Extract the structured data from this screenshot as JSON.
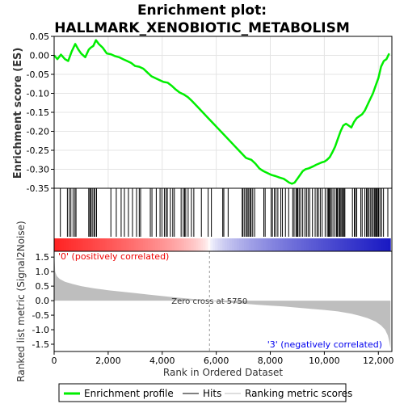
{
  "chart_data": {
    "type": "line",
    "title": "Enrichment plot:",
    "subtitle": "HALLMARK_XENOBIOTIC_METABOLISM",
    "es_panel": {
      "ylabel": "Enrichment score (ES)",
      "ylim": [
        -0.35,
        0.05
      ],
      "yticks": [
        0.05,
        0.0,
        -0.05,
        -0.1,
        -0.15,
        -0.2,
        -0.25,
        -0.3,
        -0.35
      ],
      "ytick_labels": [
        "0.05",
        "0.00",
        "-0.05",
        "-0.10",
        "-0.15",
        "-0.20",
        "-0.25",
        "-0.30",
        "-0.35"
      ],
      "color": "#00ee00",
      "series": {
        "x": [
          0,
          120,
          250,
          400,
          520,
          650,
          780,
          900,
          1000,
          1150,
          1280,
          1350,
          1450,
          1550,
          1650,
          1800,
          1950,
          2100,
          2250,
          2400,
          2550,
          2700,
          2850,
          3000,
          3150,
          3300,
          3450,
          3600,
          3750,
          3900,
          4050,
          4200,
          4350,
          4500,
          4650,
          4800,
          4950,
          5100,
          5300,
          5500,
          5700,
          5900,
          6100,
          6300,
          6500,
          6700,
          6900,
          7100,
          7300,
          7450,
          7600,
          7750,
          7900,
          8050,
          8200,
          8350,
          8500,
          8600,
          8700,
          8800,
          8900,
          9000,
          9100,
          9200,
          9300,
          9400,
          9500,
          9600,
          9700,
          9800,
          9900,
          10000,
          10100,
          10200,
          10300,
          10400,
          10500,
          10600,
          10700,
          10800,
          10900,
          11000,
          11100,
          11200,
          11300,
          11400,
          11500,
          11600,
          11700,
          11800,
          11900,
          12000,
          12100,
          12200,
          12300,
          12400
        ],
        "y": [
          0.0,
          -0.01,
          0.002,
          -0.01,
          -0.015,
          0.01,
          0.03,
          0.015,
          0.005,
          -0.005,
          0.015,
          0.02,
          0.025,
          0.04,
          0.03,
          0.02,
          0.005,
          0.003,
          -0.002,
          -0.005,
          -0.01,
          -0.015,
          -0.02,
          -0.028,
          -0.03,
          -0.035,
          -0.045,
          -0.055,
          -0.06,
          -0.065,
          -0.07,
          -0.072,
          -0.08,
          -0.09,
          -0.098,
          -0.103,
          -0.11,
          -0.12,
          -0.135,
          -0.15,
          -0.165,
          -0.18,
          -0.195,
          -0.21,
          -0.225,
          -0.24,
          -0.255,
          -0.27,
          -0.275,
          -0.285,
          -0.298,
          -0.305,
          -0.31,
          -0.315,
          -0.318,
          -0.322,
          -0.325,
          -0.33,
          -0.335,
          -0.338,
          -0.335,
          -0.325,
          -0.315,
          -0.305,
          -0.3,
          -0.298,
          -0.295,
          -0.292,
          -0.288,
          -0.285,
          -0.282,
          -0.28,
          -0.275,
          -0.268,
          -0.255,
          -0.24,
          -0.22,
          -0.2,
          -0.185,
          -0.18,
          -0.185,
          -0.19,
          -0.175,
          -0.165,
          -0.16,
          -0.155,
          -0.145,
          -0.13,
          -0.115,
          -0.1,
          -0.08,
          -0.06,
          -0.03,
          -0.015,
          -0.01,
          0.005
        ]
      }
    },
    "hits_panel": {
      "label": "Hits",
      "positions": [
        230,
        490,
        560,
        620,
        700,
        770,
        810,
        1280,
        1320,
        1360,
        1410,
        1470,
        1510,
        1570,
        2100,
        2300,
        2480,
        2600,
        2750,
        2900,
        3050,
        3150,
        3200,
        3560,
        3620,
        3780,
        3920,
        3990,
        4080,
        4140,
        4190,
        4300,
        4390,
        4450,
        4700,
        4780,
        4830,
        4870,
        4960,
        5080,
        5170,
        5450,
        5700,
        5820,
        6240,
        6280,
        6440,
        6960,
        6990,
        7050,
        7110,
        7150,
        7200,
        7250,
        7290,
        7350,
        7420,
        7760,
        7810,
        8030,
        8080,
        8150,
        8210,
        8280,
        8390,
        8450,
        8560,
        8680,
        8830,
        8880,
        8950,
        8990,
        9020,
        9070,
        9130,
        9200,
        9280,
        9340,
        9400,
        9460,
        9560,
        9660,
        9730,
        9780,
        9850,
        9920,
        10030,
        10110,
        10150,
        10180,
        10220,
        10260,
        10320,
        10390,
        10450,
        10480,
        10530,
        10570,
        10610,
        10650,
        10690,
        10730,
        10760,
        11040,
        11110,
        11150,
        11200,
        11350,
        11400,
        11500,
        11560,
        11600,
        11640,
        11700,
        11750,
        11800,
        11850,
        11880,
        11920,
        11950,
        11990,
        12010,
        12060,
        12120,
        12190,
        12350
      ]
    },
    "rank_panel": {
      "ylabel": "Ranked list metric (Signal2Noise)",
      "xlabel": "Rank in Ordered Dataset",
      "xlim": [
        0,
        12500
      ],
      "xticks": [
        0,
        2000,
        4000,
        6000,
        8000,
        10000,
        12000
      ],
      "xtick_labels": [
        "0",
        "2,000",
        "4,000",
        "6,000",
        "8,000",
        "10,000",
        "12,000"
      ],
      "ylim": [
        -1.75,
        1.7
      ],
      "yticks": [
        1.5,
        1.0,
        0.5,
        0.0,
        -0.5,
        -1.0,
        -1.5
      ],
      "ytick_labels": [
        "1.5",
        "1.0",
        "0.5",
        "0.0",
        "-0.5",
        "-1.0",
        "-1.5"
      ],
      "metric": {
        "x": [
          0,
          40,
          100,
          200,
          400,
          700,
          1000,
          1500,
          2000,
          2500,
          3000,
          3500,
          4000,
          4500,
          5000,
          5500,
          5750,
          6000,
          6500,
          7000,
          7500,
          8000,
          8500,
          9000,
          9500,
          10000,
          10500,
          11000,
          11300,
          11600,
          11900,
          12100,
          12250,
          12350,
          12400,
          12450
        ],
        "y": [
          1.65,
          1.0,
          0.85,
          0.75,
          0.65,
          0.57,
          0.5,
          0.42,
          0.36,
          0.31,
          0.26,
          0.21,
          0.16,
          0.11,
          0.07,
          0.03,
          0.0,
          -0.03,
          -0.07,
          -0.1,
          -0.14,
          -0.17,
          -0.2,
          -0.24,
          -0.28,
          -0.32,
          -0.37,
          -0.45,
          -0.52,
          -0.6,
          -0.72,
          -0.85,
          -1.0,
          -1.2,
          -1.4,
          -1.65
        ]
      },
      "zero_cross_label": "Zero cross at 5750",
      "zero_cross": 5750,
      "pos_label": "'0' (positively correlated)",
      "neg_label": "'3' (negatively correlated)",
      "pos_color": "#ee0000",
      "neg_color": "#0000ee",
      "fill_color": "#bebebe"
    },
    "legend": {
      "items": [
        {
          "label": "Enrichment profile",
          "color": "#00ee00",
          "style": "line-thick"
        },
        {
          "label": "Hits",
          "color": "#000000",
          "style": "line"
        },
        {
          "label": "Ranking metric scores",
          "color": "#bebebe",
          "style": "line"
        }
      ]
    }
  }
}
